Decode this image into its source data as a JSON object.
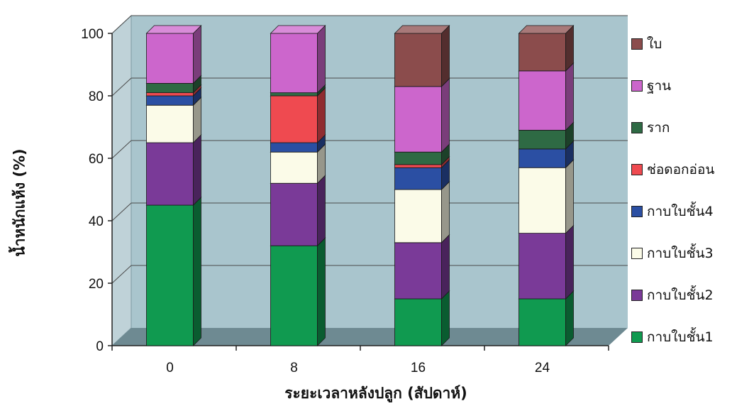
{
  "chart_data": {
    "type": "bar",
    "stacked": true,
    "three_d": true,
    "xlabel": "ระยะเวลาหลังปลูก (สัปดาห์)",
    "ylabel": "น้ำหนักแห้ง (%)",
    "ylim": [
      0,
      100
    ],
    "yticks": [
      "0",
      "20",
      "40",
      "60",
      "80",
      "100"
    ],
    "categories": [
      "0",
      "8",
      "16",
      "24"
    ],
    "grid": true,
    "legend_position": "right",
    "series": [
      {
        "name": "กาบใบชั้น1",
        "color": "#109a50",
        "values": [
          45,
          32,
          15,
          15
        ]
      },
      {
        "name": "กาบใบชั้น2",
        "color": "#7a3a98",
        "values": [
          20,
          20,
          18,
          21
        ]
      },
      {
        "name": "กาบใบชั้น3",
        "color": "#fbfbe8",
        "values": [
          12,
          10,
          17,
          21
        ]
      },
      {
        "name": "กาบใบชั้น4",
        "color": "#2b4fa3",
        "values": [
          3,
          3,
          7,
          6
        ]
      },
      {
        "name": "ช่อดอกอ่อน",
        "color": "#ef4a50",
        "values": [
          1,
          15,
          1,
          0
        ]
      },
      {
        "name": "ราก",
        "color": "#2e6a44",
        "values": [
          3,
          1,
          4,
          6
        ]
      },
      {
        "name": "ฐาน",
        "color": "#cc66cc",
        "values": [
          16,
          19,
          21,
          19
        ]
      },
      {
        "name": "ใบ",
        "color": "#8b4c4c",
        "values": [
          0,
          0,
          17,
          12
        ]
      }
    ]
  }
}
